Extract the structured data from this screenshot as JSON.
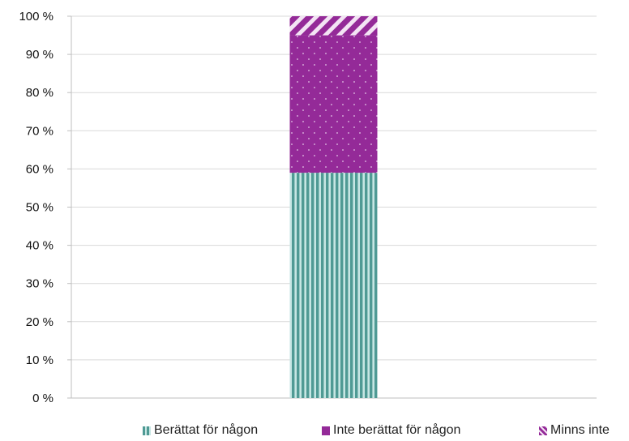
{
  "chart_data": {
    "type": "bar",
    "stacked": true,
    "categories": [
      ""
    ],
    "series": [
      {
        "name": "Berättat för någon",
        "values": [
          59
        ],
        "color": "#4f9a94",
        "pattern": "vertical-stripes"
      },
      {
        "name": "Inte berättat för någon",
        "values": [
          36
        ],
        "color": "#942a98",
        "pattern": "dots"
      },
      {
        "name": "Minns inte",
        "values": [
          5
        ],
        "color": "#942a98",
        "pattern": "diagonal-stripes"
      }
    ],
    "y_ticks": [
      "0 %",
      "10 %",
      "20 %",
      "30 %",
      "40 %",
      "50 %",
      "60 %",
      "70 %",
      "80 %",
      "90 %",
      "100 %"
    ],
    "ylim": [
      0,
      100
    ],
    "grid": true,
    "legend_position": "bottom",
    "title": "",
    "xlabel": "",
    "ylabel": ""
  }
}
